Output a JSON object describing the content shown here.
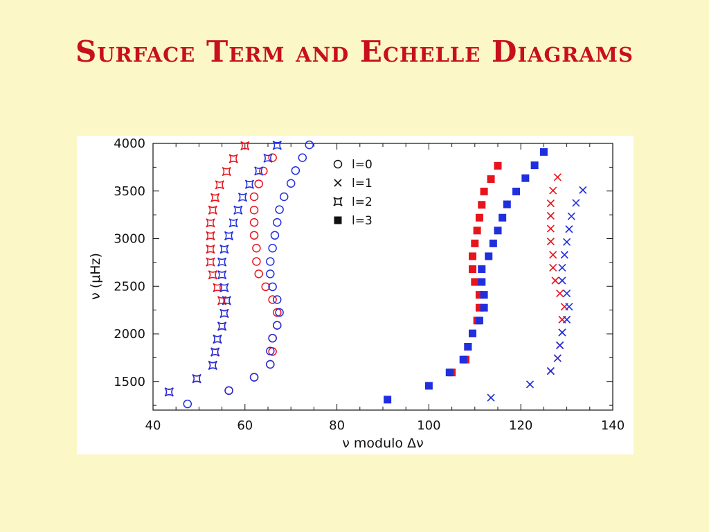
{
  "slide": {
    "title": "Surface Term and Echelle Diagrams"
  },
  "colors": {
    "background": "#fbf7c6",
    "title": "#c8101b",
    "red_series": "#e8141c",
    "blue_series": "#1f2fe0"
  },
  "chart_data": {
    "type": "scatter",
    "xlabel": "ν  modulo  Δν",
    "ylabel": "ν  (μHz)",
    "xlim": [
      40,
      140
    ],
    "ylim": [
      1200,
      4000
    ],
    "xticks": [
      40,
      60,
      80,
      100,
      120,
      140
    ],
    "yticks": [
      1500,
      2000,
      2500,
      3000,
      3500,
      4000
    ],
    "legend_position": "top-center",
    "legend": [
      {
        "label": "l=0",
        "marker": "circle"
      },
      {
        "label": "l=1",
        "marker": "cross"
      },
      {
        "label": "l=2",
        "marker": "star"
      },
      {
        "label": "l=3",
        "marker": "square"
      }
    ],
    "series": [
      {
        "degree": "l=0",
        "color": "red",
        "marker": "circle",
        "points": [
          [
            56.5,
            1405
          ],
          [
            62,
            1545
          ],
          [
            65.5,
            1680
          ],
          [
            66,
            1815
          ],
          [
            66,
            1955
          ],
          [
            67,
            2090
          ],
          [
            67,
            2225
          ],
          [
            66,
            2360
          ],
          [
            64.5,
            2495
          ],
          [
            63,
            2630
          ],
          [
            62.5,
            2760
          ],
          [
            62.5,
            2900
          ],
          [
            62,
            3035
          ],
          [
            62,
            3170
          ],
          [
            62,
            3300
          ],
          [
            62,
            3440
          ],
          [
            63,
            3575
          ],
          [
            64,
            3710
          ],
          [
            66,
            3850
          ]
        ]
      },
      {
        "degree": "l=0",
        "color": "blue",
        "marker": "circle",
        "points": [
          [
            47.5,
            1265
          ],
          [
            56.5,
            1405
          ],
          [
            62,
            1545
          ],
          [
            65.5,
            1680
          ],
          [
            65.5,
            1820
          ],
          [
            66,
            1955
          ],
          [
            67,
            2090
          ],
          [
            67.5,
            2225
          ],
          [
            67,
            2360
          ],
          [
            66,
            2495
          ],
          [
            65.5,
            2630
          ],
          [
            65.5,
            2760
          ],
          [
            66,
            2900
          ],
          [
            66.5,
            3035
          ],
          [
            67,
            3170
          ],
          [
            67.5,
            3305
          ],
          [
            68.5,
            3440
          ],
          [
            70,
            3580
          ],
          [
            71,
            3715
          ],
          [
            72.5,
            3850
          ],
          [
            74,
            3985
          ]
        ]
      },
      {
        "degree": "l=1",
        "color": "red",
        "marker": "cross",
        "points": [
          [
            126.5,
            1610
          ],
          [
            128,
            1745
          ],
          [
            128.5,
            1880
          ],
          [
            129,
            2015
          ],
          [
            129,
            2150
          ],
          [
            129.5,
            2285
          ],
          [
            128.5,
            2425
          ],
          [
            127.5,
            2560
          ],
          [
            127,
            2695
          ],
          [
            127,
            2830
          ],
          [
            126.5,
            2970
          ],
          [
            126.5,
            3105
          ],
          [
            126.5,
            3240
          ],
          [
            126.5,
            3370
          ],
          [
            127,
            3505
          ],
          [
            128,
            3645
          ]
        ]
      },
      {
        "degree": "l=1",
        "color": "blue",
        "marker": "cross",
        "points": [
          [
            113.5,
            1330
          ],
          [
            122,
            1470
          ],
          [
            126.5,
            1610
          ],
          [
            128,
            1745
          ],
          [
            128.5,
            1880
          ],
          [
            129,
            2015
          ],
          [
            130,
            2150
          ],
          [
            130.5,
            2285
          ],
          [
            130,
            2425
          ],
          [
            129,
            2560
          ],
          [
            129,
            2695
          ],
          [
            129.5,
            2830
          ],
          [
            130,
            2965
          ],
          [
            130.5,
            3100
          ],
          [
            131,
            3235
          ],
          [
            132,
            3375
          ],
          [
            133.5,
            3510
          ]
        ]
      },
      {
        "degree": "l=2",
        "color": "red",
        "marker": "star",
        "points": [
          [
            43.5,
            1390
          ],
          [
            49.5,
            1530
          ],
          [
            53,
            1670
          ],
          [
            53.5,
            1810
          ],
          [
            54,
            1945
          ],
          [
            55,
            2080
          ],
          [
            55.5,
            2215
          ],
          [
            55,
            2350
          ],
          [
            54,
            2485
          ],
          [
            53,
            2620
          ],
          [
            52.5,
            2755
          ],
          [
            52.5,
            2890
          ],
          [
            52.5,
            3030
          ],
          [
            52.5,
            3165
          ],
          [
            53,
            3300
          ],
          [
            53.5,
            3430
          ],
          [
            54.5,
            3565
          ],
          [
            56,
            3705
          ],
          [
            57.5,
            3840
          ],
          [
            60,
            3975
          ]
        ]
      },
      {
        "degree": "l=2",
        "color": "blue",
        "marker": "star",
        "points": [
          [
            43.5,
            1390
          ],
          [
            49.5,
            1530
          ],
          [
            53,
            1670
          ],
          [
            53.5,
            1810
          ],
          [
            54,
            1945
          ],
          [
            55,
            2080
          ],
          [
            55.5,
            2215
          ],
          [
            56,
            2350
          ],
          [
            55.5,
            2485
          ],
          [
            55,
            2620
          ],
          [
            55,
            2755
          ],
          [
            55.5,
            2890
          ],
          [
            56.5,
            3030
          ],
          [
            57.5,
            3165
          ],
          [
            58.5,
            3300
          ],
          [
            59.5,
            3435
          ],
          [
            61,
            3570
          ],
          [
            63,
            3710
          ],
          [
            65,
            3845
          ],
          [
            67,
            3980
          ]
        ]
      },
      {
        "degree": "l=3",
        "color": "red",
        "marker": "square",
        "points": [
          [
            105,
            1595
          ],
          [
            108,
            1730
          ],
          [
            108.5,
            1865
          ],
          [
            109.5,
            2005
          ],
          [
            110.5,
            2140
          ],
          [
            111,
            2275
          ],
          [
            111,
            2410
          ],
          [
            110,
            2545
          ],
          [
            109.5,
            2680
          ],
          [
            109.5,
            2815
          ],
          [
            110,
            2950
          ],
          [
            110.5,
            3085
          ],
          [
            111,
            3220
          ],
          [
            111.5,
            3355
          ],
          [
            112,
            3495
          ],
          [
            113.5,
            3625
          ],
          [
            115,
            3765
          ]
        ]
      },
      {
        "degree": "l=3",
        "color": "blue",
        "marker": "square",
        "points": [
          [
            91,
            1310
          ],
          [
            100,
            1455
          ],
          [
            104.5,
            1595
          ],
          [
            107.5,
            1730
          ],
          [
            108.5,
            1865
          ],
          [
            109.5,
            2005
          ],
          [
            111,
            2140
          ],
          [
            112,
            2275
          ],
          [
            112,
            2410
          ],
          [
            111.5,
            2545
          ],
          [
            111.5,
            2680
          ],
          [
            113,
            2815
          ],
          [
            114,
            2950
          ],
          [
            115,
            3085
          ],
          [
            116,
            3220
          ],
          [
            117,
            3360
          ],
          [
            119,
            3495
          ],
          [
            121,
            3635
          ],
          [
            123,
            3770
          ],
          [
            125,
            3910
          ]
        ]
      }
    ]
  }
}
